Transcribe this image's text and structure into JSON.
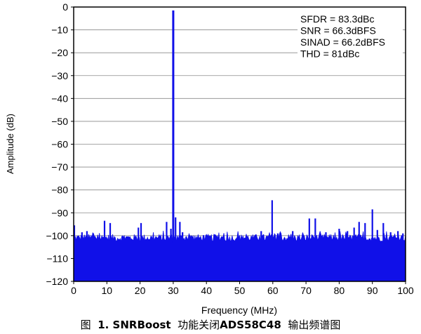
{
  "chart_data": {
    "type": "line",
    "xlabel": "Frequency (MHz)",
    "ylabel": "Amplitude (dB)",
    "xlim": [
      0,
      100
    ],
    "ylim": [
      -120,
      0
    ],
    "xticks": [
      0,
      10,
      20,
      30,
      40,
      50,
      60,
      70,
      80,
      90,
      100
    ],
    "yticks": [
      0,
      -10,
      -20,
      -30,
      -40,
      -50,
      -60,
      -70,
      -80,
      -90,
      -100,
      -110,
      -120
    ],
    "grid": "horizontal",
    "color": "#1010e8",
    "noise_floor_db": -101,
    "peaks": [
      {
        "x": 0.2,
        "y": -95.5
      },
      {
        "x": 2.5,
        "y": -98.5
      },
      {
        "x": 4.0,
        "y": -98.0
      },
      {
        "x": 9.3,
        "y": -93.5
      },
      {
        "x": 11.0,
        "y": -94.5
      },
      {
        "x": 19.5,
        "y": -96.5
      },
      {
        "x": 20.3,
        "y": -94.5
      },
      {
        "x": 28.0,
        "y": -94.0
      },
      {
        "x": 29.3,
        "y": -97.0
      },
      {
        "x": 30.0,
        "y": -1.5
      },
      {
        "x": 30.7,
        "y": -92.0
      },
      {
        "x": 32.0,
        "y": -94.0
      },
      {
        "x": 32.8,
        "y": -98.5
      },
      {
        "x": 40.0,
        "y": -100.5
      },
      {
        "x": 56.5,
        "y": -98.0
      },
      {
        "x": 59.8,
        "y": -84.5
      },
      {
        "x": 61.5,
        "y": -99.0
      },
      {
        "x": 66.0,
        "y": -98.0
      },
      {
        "x": 71.0,
        "y": -92.5
      },
      {
        "x": 72.8,
        "y": -92.5
      },
      {
        "x": 76.0,
        "y": -98.5
      },
      {
        "x": 80.0,
        "y": -97.0
      },
      {
        "x": 82.5,
        "y": -98.0
      },
      {
        "x": 84.5,
        "y": -96.5
      },
      {
        "x": 86.0,
        "y": -94.0
      },
      {
        "x": 87.8,
        "y": -94.5
      },
      {
        "x": 90.0,
        "y": -88.5
      },
      {
        "x": 91.5,
        "y": -97.5
      },
      {
        "x": 93.3,
        "y": -94.5
      },
      {
        "x": 95.5,
        "y": -98.5
      },
      {
        "x": 97.7,
        "y": -98.0
      },
      {
        "x": 99.2,
        "y": -99.0
      }
    ],
    "annotations": [
      "SFDR = 83.3dBc",
      "SNR = 66.3dBFS",
      "SINAD = 66.2dBFS",
      "THD = 81dBc"
    ]
  },
  "caption": {
    "prefix": "图",
    "bold": "1. SNRBoost",
    "middle": "功能关闭",
    "bold2": "ADS58C48",
    "suffix": "输出频谱图"
  }
}
